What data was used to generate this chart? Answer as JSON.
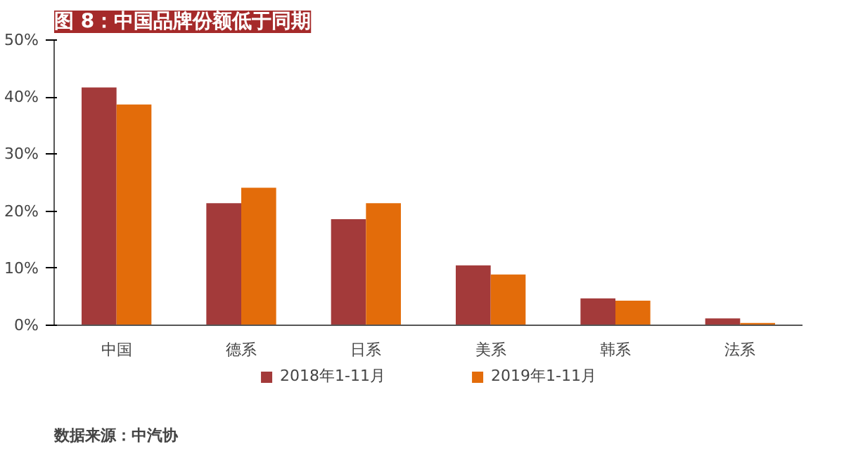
{
  "chart_data": {
    "type": "bar",
    "title": "图 8：中国品牌份额低于同期",
    "categories": [
      "中国",
      "德系",
      "日系",
      "美系",
      "韩系",
      "法系"
    ],
    "series": [
      {
        "name": "2018年1-11月",
        "color": "#a33a3a",
        "values": [
          41.7,
          21.4,
          18.6,
          10.5,
          4.7,
          1.2
        ]
      },
      {
        "name": "2019年1-11月",
        "color": "#e36c0a",
        "values": [
          38.7,
          24.1,
          21.4,
          8.9,
          4.3,
          0.4
        ]
      }
    ],
    "ylim": [
      0,
      50
    ],
    "yticks": [
      {
        "value": 0,
        "label": "0%"
      },
      {
        "value": 10,
        "label": "10%"
      },
      {
        "value": 20,
        "label": "20%"
      },
      {
        "value": 30,
        "label": "30%"
      },
      {
        "value": 40,
        "label": "40%"
      },
      {
        "value": 50,
        "label": "50%"
      }
    ],
    "grid": false,
    "legend": "bottom",
    "annotations": [
      "数据来源：中汽协"
    ]
  }
}
